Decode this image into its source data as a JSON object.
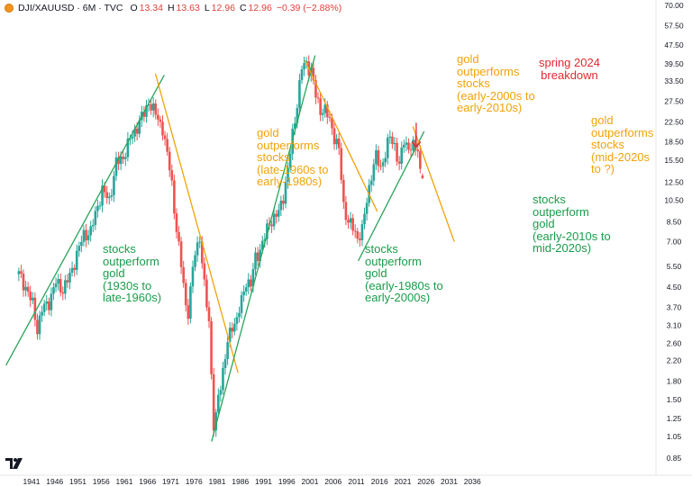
{
  "header": {
    "symbol": "DJI/XAUUSD · 6M · TVC",
    "o_label": "O",
    "o_value": "13.34",
    "h_label": "H",
    "h_value": "13.63",
    "l_label": "L",
    "l_value": "12.96",
    "c_label": "C",
    "c_value": "12.96",
    "change": "−0.39 (−2.88%)"
  },
  "colors": {
    "up": "#26a69a",
    "down": "#ef5350",
    "trend_green": "#2aa35a",
    "trend_orange": "#f0a30a",
    "annotation_green": "#1a9c4a",
    "annotation_orange": "#f2a20a",
    "annotation_red": "#e0292f"
  },
  "annotations": {
    "a1": "stocks\noutperform\ngold\n(1930s to\nlate-1960s)",
    "a2": "gold\noutperforms\nstocks\n(late-1960s to\nearly-1980s)",
    "a3": "stocks\noutperform\ngold\n(early-1980s to\nearly-2000s)",
    "a4": "gold\noutperforms\nstocks\n(early-2000s to\nearly-2010s)",
    "a5": "stocks\noutperform\ngold\n(early-2010s to\nmid-2020s)",
    "a6": "gold\noutperforms\nstocks\n(mid-2020s\nto ?)",
    "a7": "spring 2024\nbreakdown"
  },
  "chart_data": {
    "type": "candlestick",
    "scale": "log",
    "x_axis": {
      "ticks": [
        "1941",
        "1946",
        "1951",
        "1956",
        "1961",
        "1966",
        "1971",
        "1976",
        "1981",
        "1986",
        "1991",
        "1996",
        "2001",
        "2006",
        "2011",
        "2016",
        "2021",
        "2026",
        "2031",
        "2036"
      ]
    },
    "y_axis": {
      "position": "right",
      "ticks": [
        "0.85",
        "1.05",
        "1.25",
        "1.50",
        "1.80",
        "2.20",
        "2.60",
        "3.10",
        "3.70",
        "4.50",
        "5.50",
        "7.00",
        "8.50",
        "10.50",
        "12.50",
        "15.50",
        "18.50",
        "22.50",
        "27.50",
        "33.50",
        "39.50",
        "47.50",
        "57.50",
        "70.00"
      ]
    },
    "anchor_closes": [
      [
        1938.0,
        5.1
      ],
      [
        1939.5,
        4.5
      ],
      [
        1941.0,
        3.8
      ],
      [
        1942.0,
        3.0
      ],
      [
        1943.0,
        3.6
      ],
      [
        1944.5,
        3.9
      ],
      [
        1946.0,
        4.7
      ],
      [
        1947.5,
        4.4
      ],
      [
        1949.0,
        5.0
      ],
      [
        1950.5,
        6.2
      ],
      [
        1952.0,
        7.5
      ],
      [
        1953.5,
        7.7
      ],
      [
        1955.0,
        10.0
      ],
      [
        1956.0,
        11.5
      ],
      [
        1957.5,
        10.5
      ],
      [
        1959.0,
        15.0
      ],
      [
        1960.5,
        16.0
      ],
      [
        1962.0,
        19.0
      ],
      [
        1963.5,
        21.5
      ],
      [
        1965.0,
        24.5
      ],
      [
        1966.0,
        27.5
      ],
      [
        1967.0,
        25.0
      ],
      [
        1968.0,
        23.5
      ],
      [
        1969.0,
        21.0
      ],
      [
        1970.0,
        16.0
      ],
      [
        1970.8,
        14.0
      ],
      [
        1971.5,
        9.5
      ],
      [
        1972.5,
        6.5
      ],
      [
        1973.5,
        4.8
      ],
      [
        1974.3,
        3.2
      ],
      [
        1975.0,
        4.3
      ],
      [
        1976.0,
        6.5
      ],
      [
        1977.0,
        7.2
      ],
      [
        1978.0,
        4.5
      ],
      [
        1979.0,
        3.3
      ],
      [
        1979.6,
        1.7
      ],
      [
        1980.1,
        1.05
      ],
      [
        1981.0,
        1.55
      ],
      [
        1982.0,
        2.0
      ],
      [
        1983.0,
        2.6
      ],
      [
        1984.0,
        3.1
      ],
      [
        1985.0,
        3.3
      ],
      [
        1986.0,
        3.9
      ],
      [
        1987.0,
        4.8
      ],
      [
        1988.0,
        4.6
      ],
      [
        1989.0,
        6.0
      ],
      [
        1990.0,
        6.5
      ],
      [
        1991.0,
        7.3
      ],
      [
        1992.0,
        8.5
      ],
      [
        1993.0,
        8.8
      ],
      [
        1994.0,
        9.3
      ],
      [
        1995.0,
        11.0
      ],
      [
        1996.0,
        14.0
      ],
      [
        1997.0,
        20.0
      ],
      [
        1998.0,
        27.0
      ],
      [
        1999.0,
        38.0
      ],
      [
        2000.0,
        40.0
      ],
      [
        2001.0,
        37.0
      ],
      [
        2002.0,
        29.0
      ],
      [
        2003.0,
        25.5
      ],
      [
        2004.0,
        25.0
      ],
      [
        2005.0,
        23.0
      ],
      [
        2006.0,
        19.5
      ],
      [
        2007.0,
        17.0
      ],
      [
        2008.0,
        10.0
      ],
      [
        2009.0,
        8.5
      ],
      [
        2010.0,
        8.0
      ],
      [
        2011.0,
        7.3
      ],
      [
        2012.0,
        7.8
      ],
      [
        2013.0,
        10.5
      ],
      [
        2014.0,
        13.5
      ],
      [
        2015.0,
        16.0
      ],
      [
        2016.0,
        14.5
      ],
      [
        2017.0,
        16.5
      ],
      [
        2018.0,
        19.5
      ],
      [
        2019.0,
        18.0
      ],
      [
        2020.0,
        14.5
      ],
      [
        2021.0,
        19.0
      ],
      [
        2022.0,
        17.5
      ],
      [
        2023.0,
        17.5
      ],
      [
        2024.0,
        17.5
      ],
      [
        2024.5,
        14.0
      ],
      [
        2025.0,
        12.5
      ],
      [
        2025.5,
        13.34
      ]
    ],
    "last_candle": {
      "open": 13.34,
      "high": 13.63,
      "low": 12.96,
      "close": 12.96
    },
    "trendlines": [
      {
        "color": "green",
        "from": [
          1935.5,
          2.1
        ],
        "to": [
          1969.6,
          35.5
        ]
      },
      {
        "color": "orange",
        "from": [
          1967.7,
          36.0
        ],
        "to": [
          1985.5,
          1.95
        ]
      },
      {
        "color": "green",
        "from": [
          1979.8,
          1.0
        ],
        "to": [
          2002.1,
          43.0
        ]
      },
      {
        "color": "orange",
        "from": [
          1999.9,
          41.0
        ],
        "to": [
          2015.5,
          9.4
        ]
      },
      {
        "color": "green",
        "from": [
          2011.4,
          5.8
        ],
        "to": [
          2025.6,
          20.5
        ]
      },
      {
        "color": "orange",
        "from": [
          2023.2,
          21.5
        ],
        "to": [
          2032.1,
          7.0
        ]
      }
    ],
    "arrow": {
      "from": [
        2023.9,
        22.3
      ],
      "to": [
        2023.9,
        17.6
      ]
    }
  }
}
